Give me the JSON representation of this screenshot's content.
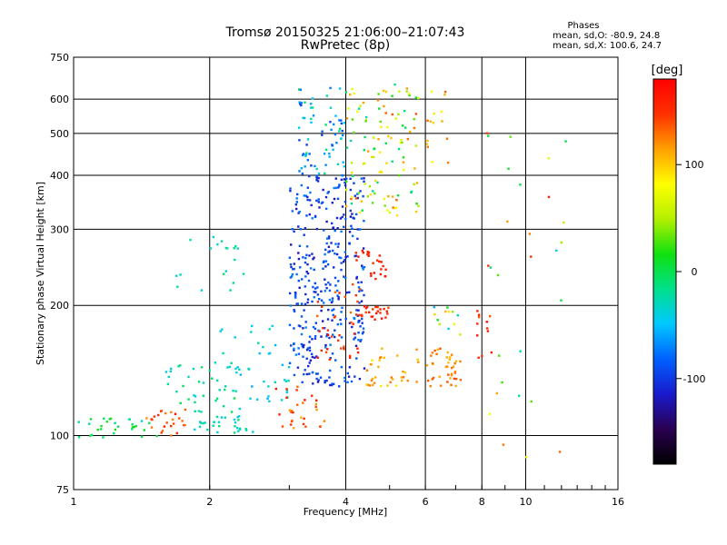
{
  "chart_data": {
    "type": "scatter",
    "title": "Tromsø 20150325 21:06:00–21:07:43",
    "subtitle": "RwPretec (8p)",
    "xlabel": "Frequency [MHz]",
    "ylabel": "Stationary phase Virtual Height [km]",
    "x_scale": "log",
    "y_scale": "log",
    "xlim": [
      1,
      16
    ],
    "ylim": [
      75,
      750
    ],
    "x_ticks": [
      1,
      2,
      4,
      6,
      8,
      10,
      16
    ],
    "x_ticklabels": [
      "1",
      "2",
      "4",
      "6",
      "8",
      "10",
      "16"
    ],
    "y_ticks": [
      75,
      100,
      200,
      300,
      400,
      500,
      600,
      750
    ],
    "y_ticklabels": [
      "75",
      "100",
      "200",
      "300",
      "400",
      "500",
      "600",
      "750"
    ],
    "grid": true,
    "color_scale": {
      "label": "[deg]",
      "range": [
        -180,
        180
      ],
      "ticks": [
        100,
        0,
        -100
      ],
      "ticklabels": [
        "100",
        "0",
        "-100"
      ],
      "colors": [
        "#000000",
        "#2a0050",
        "#1a1acc",
        "#0060ff",
        "#00c8ff",
        "#00e08c",
        "#10e010",
        "#b4f000",
        "#ffff00",
        "#ffa000",
        "#ff3000",
        "#ff0000"
      ]
    },
    "stats": {
      "heading": "Phases",
      "line1": "mean, sd,O: -80.9, 24.8",
      "line2": "mean, sd,X: 100.6, 24.7"
    },
    "clusters": [
      {
        "x": [
          1.02,
          1.55
        ],
        "y": [
          99,
          110
        ],
        "n": 30,
        "phase": [
          -40,
          20
        ]
      },
      {
        "x": [
          1.45,
          1.8
        ],
        "y": [
          100,
          115
        ],
        "n": 25,
        "phase": [
          120,
          165
        ]
      },
      {
        "x": [
          1.85,
          2.5
        ],
        "y": [
          101,
          112
        ],
        "n": 30,
        "phase": [
          -50,
          -10
        ]
      },
      {
        "x": [
          1.6,
          2.4
        ],
        "y": [
          112,
          150
        ],
        "n": 40,
        "phase": [
          -45,
          0
        ]
      },
      {
        "x": [
          2.1,
          3.0
        ],
        "y": [
          120,
          180
        ],
        "n": 40,
        "phase": [
          -60,
          -20
        ]
      },
      {
        "x": [
          1.6,
          2.4
        ],
        "y": [
          215,
          290
        ],
        "n": 20,
        "phase": [
          -40,
          -10
        ]
      },
      {
        "x": [
          3.0,
          4.4
        ],
        "y": [
          130,
          400
        ],
        "n": 380,
        "phase": [
          -120,
          -70
        ]
      },
      {
        "x": [
          3.1,
          4.0
        ],
        "y": [
          400,
          640
        ],
        "n": 70,
        "phase": [
          -100,
          0
        ]
      },
      {
        "x": [
          4.0,
          5.8
        ],
        "y": [
          320,
          650
        ],
        "n": 120,
        "phase": [
          -30,
          140
        ]
      },
      {
        "x": [
          4.2,
          5.0
        ],
        "y": [
          230,
          270
        ],
        "n": 25,
        "phase": [
          150,
          175
        ]
      },
      {
        "x": [
          4.2,
          5.0
        ],
        "y": [
          185,
          200
        ],
        "n": 25,
        "phase": [
          140,
          170
        ]
      },
      {
        "x": [
          3.4,
          4.3
        ],
        "y": [
          150,
          230
        ],
        "n": 35,
        "phase": [
          130,
          170
        ]
      },
      {
        "x": [
          2.8,
          3.6
        ],
        "y": [
          104,
          130
        ],
        "n": 30,
        "phase": [
          110,
          170
        ]
      },
      {
        "x": [
          4.4,
          5.9
        ],
        "y": [
          130,
          160
        ],
        "n": 35,
        "phase": [
          90,
          130
        ]
      },
      {
        "x": [
          6.0,
          7.2
        ],
        "y": [
          130,
          160
        ],
        "n": 40,
        "phase": [
          105,
          140
        ]
      },
      {
        "x": [
          6.2,
          7.3
        ],
        "y": [
          170,
          200
        ],
        "n": 12,
        "phase": [
          -60,
          120
        ]
      },
      {
        "x": [
          7.8,
          8.5
        ],
        "y": [
          145,
          200
        ],
        "n": 12,
        "phase": [
          130,
          170
        ]
      },
      {
        "x": [
          6.0,
          6.8
        ],
        "y": [
          400,
          650
        ],
        "n": 15,
        "phase": [
          80,
          140
        ]
      },
      {
        "x": [
          8.0,
          12.5
        ],
        "y": [
          80,
          640
        ],
        "n": 28,
        "phase": [
          -40,
          160
        ]
      }
    ]
  }
}
